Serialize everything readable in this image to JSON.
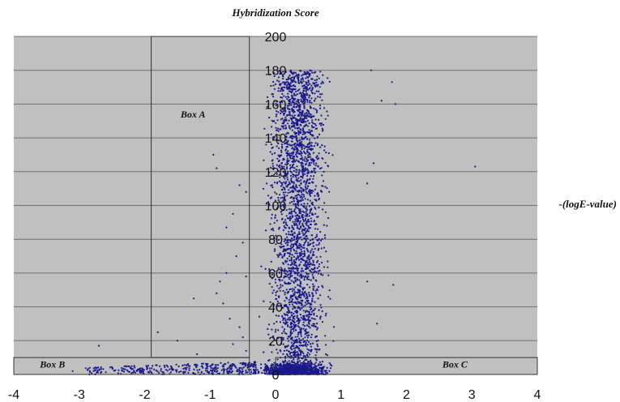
{
  "chart_data": {
    "type": "scatter",
    "title": "Hybridization Score",
    "ylabel": "-(logE-value)",
    "xlabel": "",
    "xlim": [
      -4,
      4
    ],
    "ylim": [
      0,
      200
    ],
    "x_ticks": [
      -4,
      -3,
      -2,
      -1,
      0,
      1,
      2,
      3,
      4
    ],
    "y_ticks": [
      0,
      20,
      40,
      60,
      80,
      100,
      120,
      140,
      160,
      180,
      200
    ],
    "grid": true,
    "legend": "none",
    "colors": {
      "plot_bg": "#c0c0c0",
      "point": "#1a1a8c",
      "grid": "#6f6f6f",
      "box": "#333333"
    },
    "regions": [
      {
        "label": "Box A",
        "x_range": [
          -1.9,
          -0.4
        ],
        "y_range": [
          10,
          200
        ]
      },
      {
        "label": "Box B",
        "x_range": [
          -4,
          -0.4
        ],
        "y_range": [
          0,
          10
        ]
      },
      {
        "label": "Box C",
        "x_range": [
          0,
          4
        ],
        "y_range": [
          0,
          10
        ]
      }
    ],
    "series": [
      {
        "points": [
          [
            3.05,
            123
          ],
          [
            1.78,
            173
          ],
          [
            1.83,
            160
          ],
          [
            1.62,
            162
          ],
          [
            1.46,
            180
          ],
          [
            1.5,
            125
          ],
          [
            1.8,
            53
          ],
          [
            1.55,
            30
          ],
          [
            1.4,
            113
          ],
          [
            1.4,
            55
          ],
          [
            -0.95,
            130
          ],
          [
            -0.9,
            122
          ],
          [
            -0.55,
            112
          ],
          [
            -0.45,
            108
          ],
          [
            -0.65,
            95
          ],
          [
            -0.75,
            87
          ],
          [
            -0.5,
            78
          ],
          [
            -0.6,
            70
          ],
          [
            -0.75,
            60
          ],
          [
            -0.45,
            58
          ],
          [
            -0.9,
            48
          ],
          [
            -1.25,
            45
          ],
          [
            -0.85,
            55
          ],
          [
            -0.8,
            42
          ],
          [
            -1.8,
            25
          ],
          [
            -1.5,
            20
          ],
          [
            -1.2,
            12
          ],
          [
            -2.7,
            17
          ],
          [
            -3.1,
            2
          ],
          [
            -0.7,
            33
          ],
          [
            -0.55,
            28
          ],
          [
            -0.5,
            22
          ],
          [
            -0.65,
            18
          ],
          [
            -0.45,
            14
          ],
          [
            0.05,
            5
          ],
          [
            0.25,
            8
          ],
          [
            0.45,
            3
          ],
          [
            0.7,
            6
          ],
          [
            -0.1,
            2
          ],
          [
            -0.3,
            4
          ],
          [
            -0.55,
            1
          ],
          [
            -0.9,
            1.5
          ]
        ]
      }
    ]
  }
}
